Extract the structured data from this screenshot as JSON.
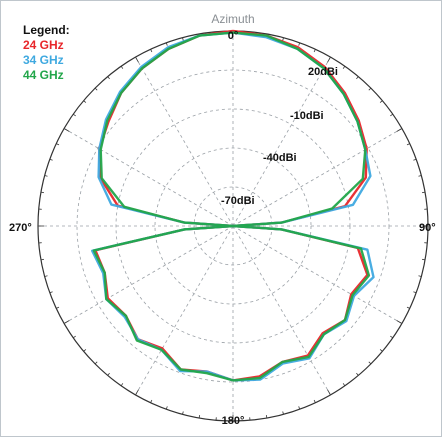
{
  "chart_data": {
    "type": "polar",
    "title": "Azimuth",
    "legend_title": "Legend:",
    "angle_labels": [
      "0°",
      "90°",
      "180°",
      "270°"
    ],
    "radial_labels": [
      "20dBi",
      "-10dBi",
      "-40dBi",
      "-70dBi"
    ],
    "radial_values_dbi": [
      20,
      -10,
      -40,
      -70
    ],
    "radial_range_dbi": [
      -100,
      20
    ],
    "angle_direction": "clockwise",
    "angle_zero": "top",
    "grid": true,
    "legend_placement": "top-left",
    "series": [
      {
        "name": "24 GHz",
        "color": "#e8262a",
        "points": [
          [
            0,
            20
          ],
          [
            10,
            19
          ],
          [
            20,
            17
          ],
          [
            30,
            13
          ],
          [
            40,
            7
          ],
          [
            50,
            1
          ],
          [
            60,
            -5
          ],
          [
            70,
            -13
          ],
          [
            80,
            -30
          ],
          [
            86,
            -70
          ],
          [
            90,
            -100
          ],
          [
            94,
            -70
          ],
          [
            100,
            -22
          ],
          [
            110,
            -12
          ],
          [
            120,
            -16
          ],
          [
            130,
            -10
          ],
          [
            140,
            -14
          ],
          [
            150,
            -8
          ],
          [
            160,
            -11
          ],
          [
            170,
            -6
          ],
          [
            180,
            -5
          ],
          [
            190,
            -9
          ],
          [
            200,
            -6
          ],
          [
            210,
            -13
          ],
          [
            220,
            -9
          ],
          [
            230,
            -14
          ],
          [
            240,
            -11
          ],
          [
            250,
            -16
          ],
          [
            260,
            -14
          ],
          [
            266,
            -70
          ],
          [
            270,
            -100
          ],
          [
            274,
            -70
          ],
          [
            280,
            -28
          ],
          [
            290,
            -13
          ],
          [
            300,
            -5
          ],
          [
            310,
            0
          ],
          [
            320,
            7
          ],
          [
            330,
            12
          ],
          [
            340,
            16
          ],
          [
            350,
            19
          ],
          [
            360,
            20
          ]
        ]
      },
      {
        "name": "34 GHz",
        "color": "#3fa9e0",
        "points": [
          [
            0,
            19
          ],
          [
            10,
            18
          ],
          [
            20,
            16
          ],
          [
            30,
            12
          ],
          [
            40,
            6
          ],
          [
            50,
            0
          ],
          [
            60,
            -6
          ],
          [
            70,
            -10
          ],
          [
            80,
            -25
          ],
          [
            86,
            -70
          ],
          [
            90,
            -100
          ],
          [
            94,
            -70
          ],
          [
            100,
            -16
          ],
          [
            110,
            -8
          ],
          [
            120,
            -14
          ],
          [
            130,
            -9
          ],
          [
            140,
            -13
          ],
          [
            150,
            -6
          ],
          [
            160,
            -10
          ],
          [
            170,
            -4
          ],
          [
            180,
            -5
          ],
          [
            190,
            -9
          ],
          [
            200,
            -5
          ],
          [
            210,
            -12
          ],
          [
            220,
            -9
          ],
          [
            230,
            -13
          ],
          [
            240,
            -10
          ],
          [
            250,
            -15
          ],
          [
            260,
            -12
          ],
          [
            266,
            -70
          ],
          [
            270,
            -100
          ],
          [
            274,
            -70
          ],
          [
            280,
            -24
          ],
          [
            290,
            -12
          ],
          [
            300,
            -5
          ],
          [
            310,
            2
          ],
          [
            320,
            8
          ],
          [
            330,
            13
          ],
          [
            340,
            17
          ],
          [
            350,
            19
          ],
          [
            360,
            19
          ]
        ]
      },
      {
        "name": "44 GHz",
        "color": "#22a64a",
        "points": [
          [
            0,
            19
          ],
          [
            10,
            19
          ],
          [
            20,
            16
          ],
          [
            30,
            12
          ],
          [
            40,
            6
          ],
          [
            50,
            0
          ],
          [
            60,
            -6
          ],
          [
            70,
            -15
          ],
          [
            80,
            -38
          ],
          [
            86,
            -70
          ],
          [
            90,
            -100
          ],
          [
            94,
            -70
          ],
          [
            100,
            -20
          ],
          [
            110,
            -11
          ],
          [
            120,
            -15
          ],
          [
            130,
            -10
          ],
          [
            140,
            -13
          ],
          [
            150,
            -7
          ],
          [
            160,
            -11
          ],
          [
            170,
            -5
          ],
          [
            180,
            -5
          ],
          [
            190,
            -8
          ],
          [
            200,
            -6
          ],
          [
            210,
            -12
          ],
          [
            220,
            -8
          ],
          [
            230,
            -14
          ],
          [
            240,
            -10
          ],
          [
            250,
            -16
          ],
          [
            260,
            -13
          ],
          [
            266,
            -70
          ],
          [
            270,
            -100
          ],
          [
            274,
            -70
          ],
          [
            280,
            -32
          ],
          [
            290,
            -14
          ],
          [
            300,
            -6
          ],
          [
            310,
            1
          ],
          [
            320,
            7
          ],
          [
            330,
            12
          ],
          [
            340,
            16
          ],
          [
            350,
            19
          ],
          [
            360,
            19
          ]
        ]
      }
    ]
  }
}
